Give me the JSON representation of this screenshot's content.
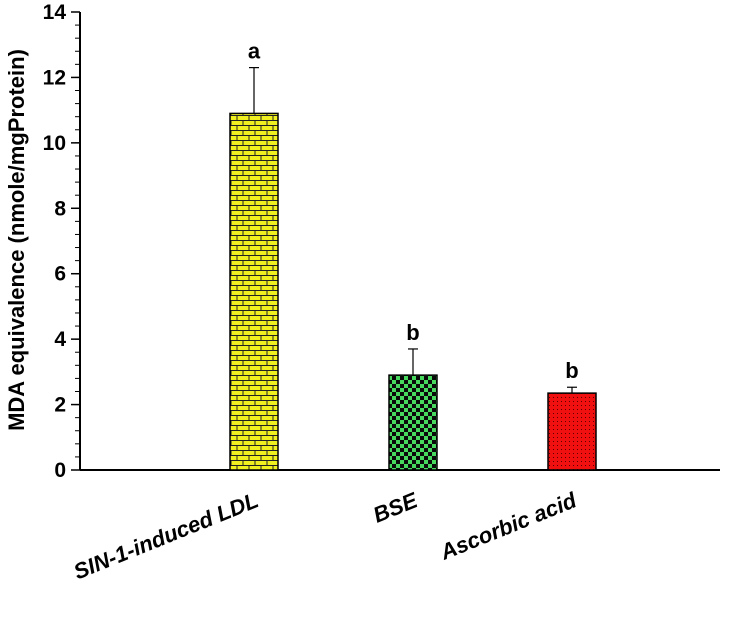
{
  "chart_data": {
    "type": "bar",
    "title": "",
    "xlabel": "",
    "ylabel": "MDA equivalence (nmole/mgProtein)",
    "ylim": [
      0,
      14
    ],
    "yticks": [
      0,
      2,
      4,
      6,
      8,
      10,
      12,
      14
    ],
    "grid": false,
    "categories": [
      "SIN-1-induced LDL",
      "BSE",
      "Ascorbic acid"
    ],
    "values": [
      10.9,
      2.9,
      2.35
    ],
    "errors": [
      1.4,
      0.8,
      0.18
    ],
    "significance_labels": [
      "a",
      "b",
      "b"
    ],
    "bar_colors": [
      "#f0f020",
      "#3fd35a",
      "#f01010"
    ],
    "bar_patterns": [
      "brick",
      "checker",
      "dots"
    ]
  }
}
